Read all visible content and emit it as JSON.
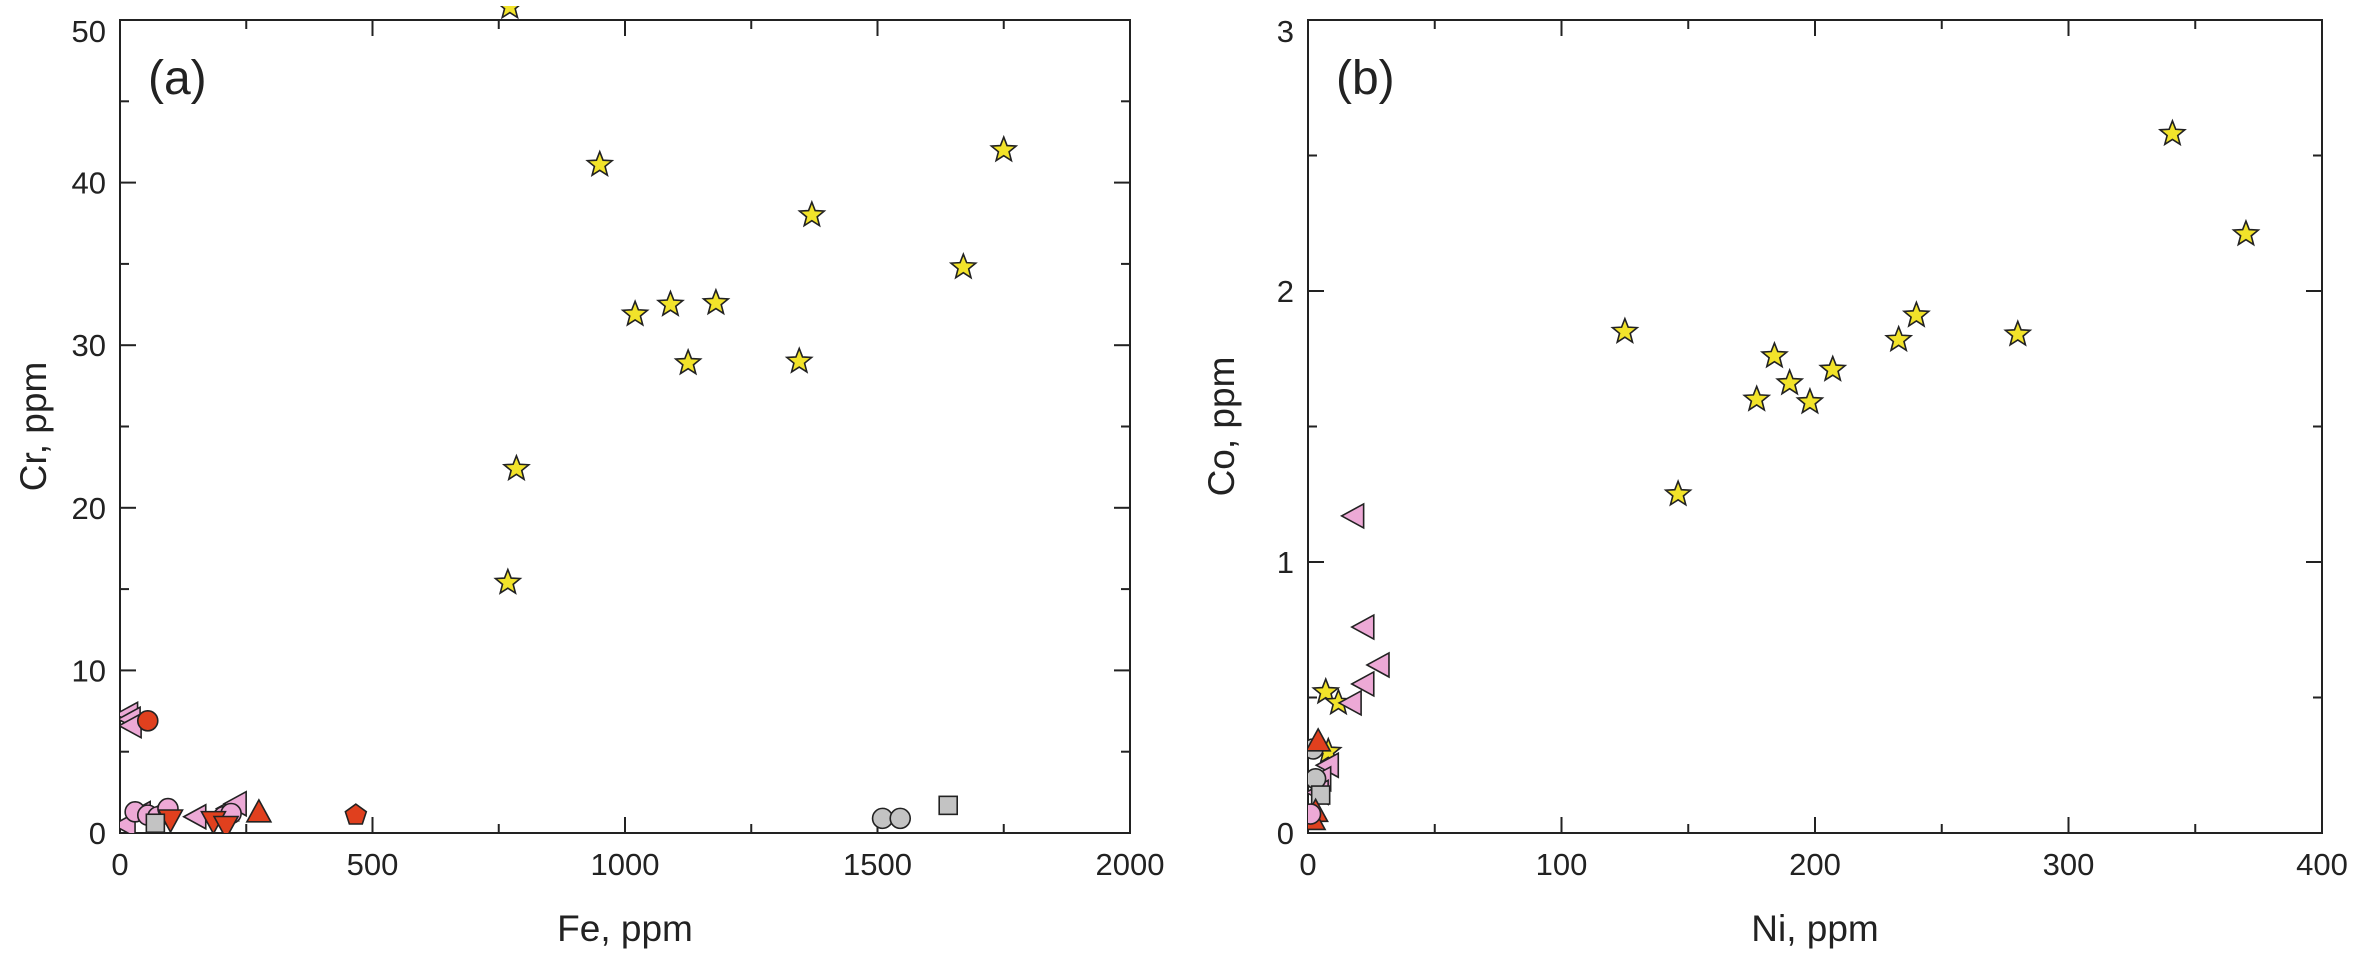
{
  "colors": {
    "star": "#f2e32a",
    "triangle_pink": "#eda9d6",
    "circle_pink": "#eda9d6",
    "red": "#e0401e",
    "gray": "#c3c3c3",
    "stroke": "#222222"
  },
  "chart_data": [
    {
      "type": "scatter",
      "panel_label": "(a)",
      "xlabel": "Fe, ppm",
      "ylabel": "Cr, ppm",
      "xlim": [
        0,
        2000
      ],
      "ylim": [
        0,
        50
      ],
      "xticks": [
        0,
        500,
        1000,
        1500,
        2000
      ],
      "yticks": [
        0,
        10,
        20,
        30,
        40,
        50
      ],
      "xtick_labels": [
        "0",
        "500",
        "1000",
        "1500",
        "2000"
      ],
      "ytick_labels": [
        "0",
        "10",
        "20",
        "30",
        "40",
        "50"
      ],
      "series": [
        {
          "name": "star",
          "marker": "star",
          "color": "#f2e32a",
          "points": [
            [
              772,
              50.8
            ],
            [
              950,
              41.1
            ],
            [
              1750,
              42.0
            ],
            [
              1370,
              38.0
            ],
            [
              1020,
              31.9
            ],
            [
              1090,
              32.5
            ],
            [
              1180,
              32.6
            ],
            [
              1125,
              28.9
            ],
            [
              1345,
              29.0
            ],
            [
              1670,
              34.8
            ],
            [
              785,
              22.4
            ],
            [
              768,
              15.4
            ]
          ]
        },
        {
          "name": "pink triangles",
          "marker": "triangle-left",
          "color": "#eda9d6",
          "points": [
            [
              15,
              7.3
            ],
            [
              20,
              7.0
            ],
            [
              22,
              6.6
            ],
            [
              40,
              1.2
            ],
            [
              60,
              1.0
            ],
            [
              150,
              1.0
            ],
            [
              215,
              1.5
            ],
            [
              230,
              1.8
            ],
            [
              10,
              0.5
            ]
          ]
        },
        {
          "name": "pink circles",
          "marker": "circle",
          "color": "#eda9d6",
          "points": [
            [
              30,
              1.3
            ],
            [
              55,
              1.1
            ],
            [
              75,
              1.0
            ],
            [
              95,
              1.5
            ],
            [
              205,
              1.0
            ],
            [
              220,
              1.2
            ]
          ]
        },
        {
          "name": "red circle",
          "marker": "circle",
          "color": "#e0401e",
          "points": [
            [
              55,
              6.9
            ]
          ]
        },
        {
          "name": "red triangles",
          "marker": "triangle-up",
          "color": "#e0401e",
          "points": [
            [
              275,
              1.3
            ]
          ]
        },
        {
          "name": "red triangles down",
          "marker": "triangle-down",
          "color": "#e0401e",
          "points": [
            [
              185,
              0.7
            ],
            [
              210,
              0.4
            ],
            [
              100,
              0.8
            ]
          ]
        },
        {
          "name": "red pentagon",
          "marker": "pentagon",
          "color": "#e0401e",
          "points": [
            [
              467,
              1.1
            ]
          ]
        },
        {
          "name": "gray circles",
          "marker": "circle",
          "color": "#c3c3c3",
          "points": [
            [
              1510,
              0.9
            ],
            [
              1545,
              0.9
            ]
          ]
        },
        {
          "name": "gray squares",
          "marker": "square",
          "color": "#c3c3c3",
          "points": [
            [
              1640,
              1.7
            ],
            [
              70,
              0.6
            ]
          ]
        }
      ]
    },
    {
      "type": "scatter",
      "panel_label": "(b)",
      "xlabel": "Ni, ppm",
      "ylabel": "Co, ppm",
      "xlim": [
        0,
        400
      ],
      "ylim": [
        0,
        3
      ],
      "xticks": [
        0,
        100,
        200,
        300,
        400
      ],
      "yticks": [
        0,
        1,
        2,
        3
      ],
      "xtick_labels": [
        "0",
        "100",
        "200",
        "300",
        "400"
      ],
      "ytick_labels": [
        "0",
        "1",
        "2",
        "3"
      ],
      "series": [
        {
          "name": "star",
          "marker": "star",
          "color": "#f2e32a",
          "points": [
            [
              341,
              2.58
            ],
            [
              370,
              2.21
            ],
            [
              125,
              1.85
            ],
            [
              184,
              1.76
            ],
            [
              240,
              1.91
            ],
            [
              233,
              1.82
            ],
            [
              280,
              1.84
            ],
            [
              207,
              1.71
            ],
            [
              190,
              1.66
            ],
            [
              177,
              1.6
            ],
            [
              198,
              1.59
            ],
            [
              146,
              1.25
            ],
            [
              7,
              0.52
            ],
            [
              12,
              0.48
            ],
            [
              8,
              0.3
            ]
          ]
        },
        {
          "name": "pink triangles",
          "marker": "triangle-left",
          "color": "#eda9d6",
          "points": [
            [
              18,
              1.17
            ],
            [
              22,
              0.76
            ],
            [
              28,
              0.62
            ],
            [
              22,
              0.55
            ],
            [
              17,
              0.48
            ],
            [
              8,
              0.25
            ],
            [
              5,
              0.2
            ],
            [
              4,
              0.15
            ]
          ]
        },
        {
          "name": "gray circles",
          "marker": "circle",
          "color": "#c3c3c3",
          "points": [
            [
              2,
              0.31
            ],
            [
              3,
              0.2
            ]
          ]
        },
        {
          "name": "gray squares",
          "marker": "square",
          "color": "#c3c3c3",
          "points": [
            [
              5,
              0.14
            ]
          ]
        },
        {
          "name": "red triangles",
          "marker": "triangle-up",
          "color": "#e0401e",
          "points": [
            [
              4,
              0.34
            ],
            [
              3,
              0.08
            ],
            [
              2,
              0.05
            ]
          ]
        },
        {
          "name": "pink circles",
          "marker": "circle",
          "color": "#eda9d6",
          "points": [
            [
              1,
              0.07
            ]
          ]
        }
      ]
    }
  ]
}
